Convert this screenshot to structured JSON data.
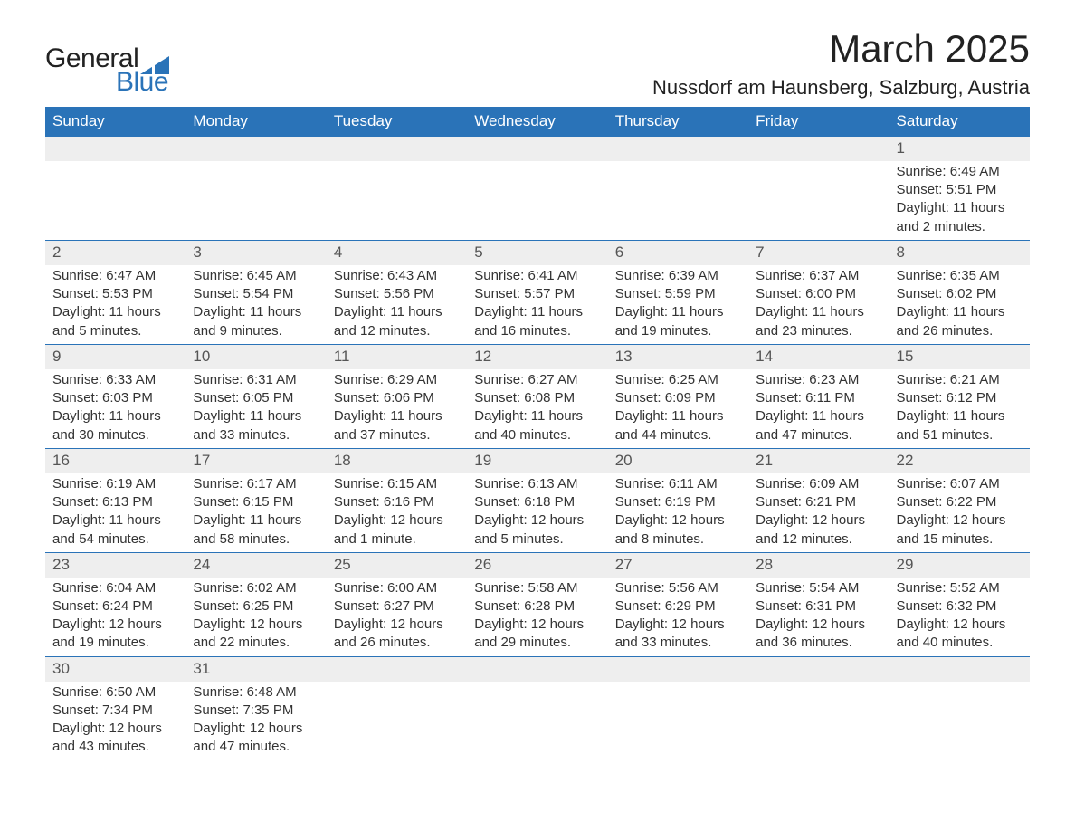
{
  "brand": {
    "general": "General",
    "blue": "Blue",
    "accent_color": "#2a73b8"
  },
  "title": "March 2025",
  "location": "Nussdorf am Haunsberg, Salzburg, Austria",
  "weekdays": [
    "Sunday",
    "Monday",
    "Tuesday",
    "Wednesday",
    "Thursday",
    "Friday",
    "Saturday"
  ],
  "colors": {
    "header_bg": "#2a73b8",
    "header_fg": "#ffffff",
    "daynum_bg": "#eeeeee",
    "row_border": "#2a73b8",
    "text": "#333333",
    "bg": "#ffffff"
  },
  "fonts": {
    "title_size": 42,
    "location_size": 22,
    "weekday_size": 17,
    "cell_size": 15
  },
  "layout": {
    "columns": 7,
    "rows": 6,
    "aspect": "1188x918"
  },
  "weeks": [
    [
      null,
      null,
      null,
      null,
      null,
      null,
      {
        "n": "1",
        "sr": "Sunrise: 6:49 AM",
        "ss": "Sunset: 5:51 PM",
        "d1": "Daylight: 11 hours",
        "d2": "and 2 minutes."
      }
    ],
    [
      {
        "n": "2",
        "sr": "Sunrise: 6:47 AM",
        "ss": "Sunset: 5:53 PM",
        "d1": "Daylight: 11 hours",
        "d2": "and 5 minutes."
      },
      {
        "n": "3",
        "sr": "Sunrise: 6:45 AM",
        "ss": "Sunset: 5:54 PM",
        "d1": "Daylight: 11 hours",
        "d2": "and 9 minutes."
      },
      {
        "n": "4",
        "sr": "Sunrise: 6:43 AM",
        "ss": "Sunset: 5:56 PM",
        "d1": "Daylight: 11 hours",
        "d2": "and 12 minutes."
      },
      {
        "n": "5",
        "sr": "Sunrise: 6:41 AM",
        "ss": "Sunset: 5:57 PM",
        "d1": "Daylight: 11 hours",
        "d2": "and 16 minutes."
      },
      {
        "n": "6",
        "sr": "Sunrise: 6:39 AM",
        "ss": "Sunset: 5:59 PM",
        "d1": "Daylight: 11 hours",
        "d2": "and 19 minutes."
      },
      {
        "n": "7",
        "sr": "Sunrise: 6:37 AM",
        "ss": "Sunset: 6:00 PM",
        "d1": "Daylight: 11 hours",
        "d2": "and 23 minutes."
      },
      {
        "n": "8",
        "sr": "Sunrise: 6:35 AM",
        "ss": "Sunset: 6:02 PM",
        "d1": "Daylight: 11 hours",
        "d2": "and 26 minutes."
      }
    ],
    [
      {
        "n": "9",
        "sr": "Sunrise: 6:33 AM",
        "ss": "Sunset: 6:03 PM",
        "d1": "Daylight: 11 hours",
        "d2": "and 30 minutes."
      },
      {
        "n": "10",
        "sr": "Sunrise: 6:31 AM",
        "ss": "Sunset: 6:05 PM",
        "d1": "Daylight: 11 hours",
        "d2": "and 33 minutes."
      },
      {
        "n": "11",
        "sr": "Sunrise: 6:29 AM",
        "ss": "Sunset: 6:06 PM",
        "d1": "Daylight: 11 hours",
        "d2": "and 37 minutes."
      },
      {
        "n": "12",
        "sr": "Sunrise: 6:27 AM",
        "ss": "Sunset: 6:08 PM",
        "d1": "Daylight: 11 hours",
        "d2": "and 40 minutes."
      },
      {
        "n": "13",
        "sr": "Sunrise: 6:25 AM",
        "ss": "Sunset: 6:09 PM",
        "d1": "Daylight: 11 hours",
        "d2": "and 44 minutes."
      },
      {
        "n": "14",
        "sr": "Sunrise: 6:23 AM",
        "ss": "Sunset: 6:11 PM",
        "d1": "Daylight: 11 hours",
        "d2": "and 47 minutes."
      },
      {
        "n": "15",
        "sr": "Sunrise: 6:21 AM",
        "ss": "Sunset: 6:12 PM",
        "d1": "Daylight: 11 hours",
        "d2": "and 51 minutes."
      }
    ],
    [
      {
        "n": "16",
        "sr": "Sunrise: 6:19 AM",
        "ss": "Sunset: 6:13 PM",
        "d1": "Daylight: 11 hours",
        "d2": "and 54 minutes."
      },
      {
        "n": "17",
        "sr": "Sunrise: 6:17 AM",
        "ss": "Sunset: 6:15 PM",
        "d1": "Daylight: 11 hours",
        "d2": "and 58 minutes."
      },
      {
        "n": "18",
        "sr": "Sunrise: 6:15 AM",
        "ss": "Sunset: 6:16 PM",
        "d1": "Daylight: 12 hours",
        "d2": "and 1 minute."
      },
      {
        "n": "19",
        "sr": "Sunrise: 6:13 AM",
        "ss": "Sunset: 6:18 PM",
        "d1": "Daylight: 12 hours",
        "d2": "and 5 minutes."
      },
      {
        "n": "20",
        "sr": "Sunrise: 6:11 AM",
        "ss": "Sunset: 6:19 PM",
        "d1": "Daylight: 12 hours",
        "d2": "and 8 minutes."
      },
      {
        "n": "21",
        "sr": "Sunrise: 6:09 AM",
        "ss": "Sunset: 6:21 PM",
        "d1": "Daylight: 12 hours",
        "d2": "and 12 minutes."
      },
      {
        "n": "22",
        "sr": "Sunrise: 6:07 AM",
        "ss": "Sunset: 6:22 PM",
        "d1": "Daylight: 12 hours",
        "d2": "and 15 minutes."
      }
    ],
    [
      {
        "n": "23",
        "sr": "Sunrise: 6:04 AM",
        "ss": "Sunset: 6:24 PM",
        "d1": "Daylight: 12 hours",
        "d2": "and 19 minutes."
      },
      {
        "n": "24",
        "sr": "Sunrise: 6:02 AM",
        "ss": "Sunset: 6:25 PM",
        "d1": "Daylight: 12 hours",
        "d2": "and 22 minutes."
      },
      {
        "n": "25",
        "sr": "Sunrise: 6:00 AM",
        "ss": "Sunset: 6:27 PM",
        "d1": "Daylight: 12 hours",
        "d2": "and 26 minutes."
      },
      {
        "n": "26",
        "sr": "Sunrise: 5:58 AM",
        "ss": "Sunset: 6:28 PM",
        "d1": "Daylight: 12 hours",
        "d2": "and 29 minutes."
      },
      {
        "n": "27",
        "sr": "Sunrise: 5:56 AM",
        "ss": "Sunset: 6:29 PM",
        "d1": "Daylight: 12 hours",
        "d2": "and 33 minutes."
      },
      {
        "n": "28",
        "sr": "Sunrise: 5:54 AM",
        "ss": "Sunset: 6:31 PM",
        "d1": "Daylight: 12 hours",
        "d2": "and 36 minutes."
      },
      {
        "n": "29",
        "sr": "Sunrise: 5:52 AM",
        "ss": "Sunset: 6:32 PM",
        "d1": "Daylight: 12 hours",
        "d2": "and 40 minutes."
      }
    ],
    [
      {
        "n": "30",
        "sr": "Sunrise: 6:50 AM",
        "ss": "Sunset: 7:34 PM",
        "d1": "Daylight: 12 hours",
        "d2": "and 43 minutes."
      },
      {
        "n": "31",
        "sr": "Sunrise: 6:48 AM",
        "ss": "Sunset: 7:35 PM",
        "d1": "Daylight: 12 hours",
        "d2": "and 47 minutes."
      },
      null,
      null,
      null,
      null,
      null
    ]
  ]
}
